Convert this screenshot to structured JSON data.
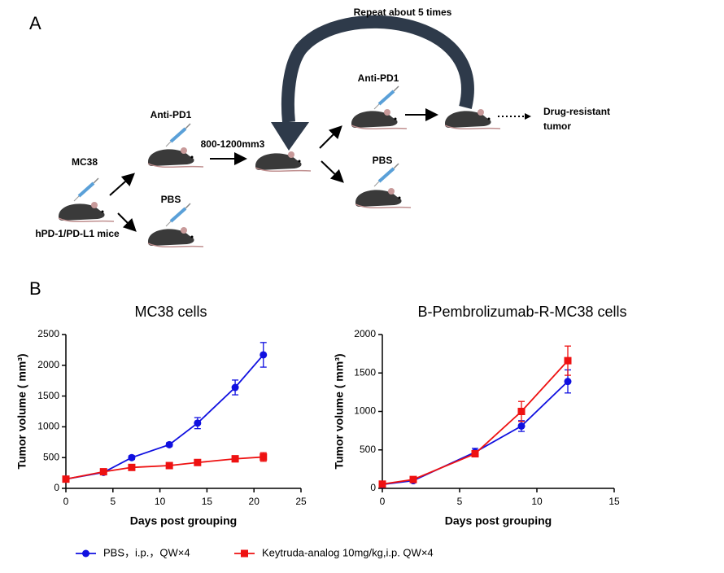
{
  "panel_a": {
    "label": "A",
    "repeat": "Repeat about 5 times",
    "anti_pd1_1": "Anti-PD1",
    "mc38": "MC38",
    "size": "800-1200mm3",
    "pbs_1": "PBS",
    "mice": "hPD-1/PD-L1 mice",
    "anti_pd1_2": "Anti-PD1",
    "pbs_2": "PBS",
    "result_1": "Drug-resistant",
    "result_2": "tumor"
  },
  "panel_b": {
    "label": "B"
  },
  "chart_data": [
    {
      "type": "line",
      "title": "MC38 cells",
      "x_label": "Days post grouping",
      "y_label": "Tumor volume ( mm³)",
      "x": [
        0,
        4,
        7,
        11,
        14,
        18,
        21
      ],
      "series": [
        {
          "name": "PBS，i.p.，QW×4",
          "color": "#1010e0",
          "marker": "circle",
          "values": [
            150,
            260,
            500,
            710,
            1060,
            1640,
            2170
          ],
          "errors": [
            20,
            20,
            30,
            30,
            90,
            120,
            200
          ]
        },
        {
          "name": "Keytruda-analog 10mg/kg,i.p. QW×4",
          "color": "#ee1111",
          "marker": "square",
          "values": [
            150,
            270,
            340,
            370,
            420,
            480,
            510
          ],
          "errors": [
            20,
            20,
            30,
            30,
            30,
            50,
            70
          ]
        }
      ],
      "xlim": [
        0,
        25
      ],
      "xticks": [
        0,
        5,
        10,
        15,
        20,
        25
      ],
      "ylim": [
        0,
        2500
      ],
      "yticks": [
        0,
        500,
        1000,
        1500,
        2000,
        2500
      ]
    },
    {
      "type": "line",
      "title": "B-Pembrolizumab-R-MC38 cells",
      "x_label": "Days post grouping",
      "y_label": "Tumor volume ( mm³)",
      "x": [
        0,
        2,
        6,
        9,
        12
      ],
      "series": [
        {
          "name": "PBS，i.p.，QW×4",
          "color": "#1010e0",
          "marker": "circle",
          "values": [
            50,
            100,
            470,
            810,
            1390
          ],
          "errors": [
            20,
            20,
            50,
            70,
            150
          ]
        },
        {
          "name": "Keytruda-analog 10mg/kg,i.p. QW×4",
          "color": "#ee1111",
          "marker": "square",
          "values": [
            55,
            115,
            450,
            1000,
            1660
          ],
          "errors": [
            20,
            20,
            40,
            130,
            190
          ]
        }
      ],
      "xlim": [
        0,
        15
      ],
      "xticks": [
        0,
        5,
        10,
        15
      ],
      "ylim": [
        0,
        2000
      ],
      "yticks": [
        0,
        500,
        1000,
        1500,
        2000
      ]
    }
  ]
}
